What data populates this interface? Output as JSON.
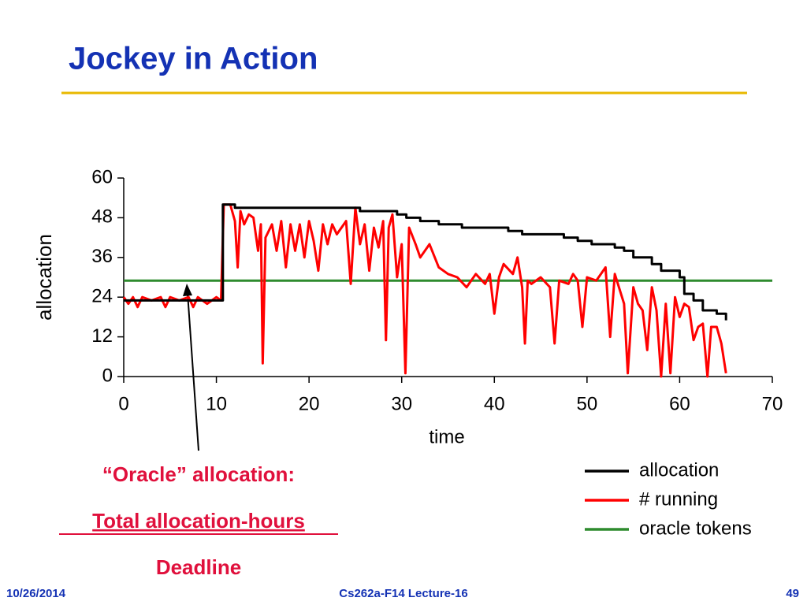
{
  "slide": {
    "title": "Jockey in Action",
    "notes": [
      "“Oracle” allocation:",
      "Total allocation-hours",
      "Deadline"
    ],
    "footer": {
      "date": "10/26/2014",
      "course": "Cs262a-F14 Lecture-16",
      "page": "49"
    }
  },
  "chart_data": {
    "type": "line",
    "xlabel": "time",
    "ylabel": "allocation",
    "xlim": [
      0,
      70
    ],
    "xticks": [
      0,
      10,
      20,
      30,
      40,
      50,
      60,
      70
    ],
    "ylim": [
      0,
      60
    ],
    "yticks": [
      0,
      12,
      24,
      36,
      48,
      60
    ],
    "series": [
      {
        "name": "allocation",
        "color": "#000000",
        "step": true,
        "x": [
          0,
          10.7,
          12,
          25.5,
          29.5,
          30.5,
          32,
          34,
          36.5,
          41.5,
          43,
          47.5,
          49,
          50.5,
          53,
          54,
          55,
          57,
          58,
          60,
          60.5,
          61.5,
          62.5,
          64,
          65
        ],
        "values": [
          23,
          52,
          51,
          50,
          49,
          48,
          47,
          46,
          45,
          44,
          43,
          42,
          41,
          40,
          39,
          38,
          36,
          34,
          32,
          30,
          25,
          23,
          20,
          19,
          17
        ]
      },
      {
        "name": "# running",
        "color": "#ff0000",
        "x": [
          0,
          0.5,
          1,
          1.5,
          2,
          3,
          4,
          4.5,
          5,
          6,
          7,
          7.5,
          8,
          9,
          10,
          10.5,
          10.8,
          11.5,
          12,
          12.3,
          12.6,
          13,
          13.5,
          14,
          14.5,
          14.8,
          15,
          15.3,
          16,
          16.5,
          17,
          17.5,
          18,
          18.5,
          19,
          19.5,
          20,
          20.5,
          21,
          21.5,
          22,
          22.5,
          23,
          24,
          24.5,
          25,
          25.5,
          26,
          26.5,
          27,
          27.5,
          28,
          28.3,
          28.6,
          29,
          29.5,
          30,
          30.4,
          30.8,
          31.5,
          32,
          33,
          34,
          35,
          36,
          37,
          38,
          39,
          39.5,
          40,
          40.5,
          41,
          42,
          42.5,
          43,
          43.3,
          43.6,
          44,
          45,
          46,
          46.5,
          47,
          48,
          48.5,
          49,
          49.5,
          50,
          51,
          52,
          52.5,
          53,
          54,
          54.4,
          55,
          55.5,
          56,
          56.5,
          57,
          57.5,
          58,
          58.5,
          59,
          59.5,
          60,
          60.5,
          61,
          61.5,
          62,
          62.5,
          63,
          63.4,
          64,
          64.5,
          65
        ],
        "values": [
          24,
          22,
          24,
          21,
          24,
          23,
          24,
          21,
          24,
          23,
          24,
          21,
          24,
          22,
          24,
          23,
          52,
          52,
          47,
          33,
          50,
          46,
          49,
          48,
          38,
          46,
          4,
          42,
          46,
          38,
          47,
          33,
          46,
          38,
          46,
          36,
          47,
          41,
          32,
          46,
          40,
          46,
          43,
          47,
          28,
          51,
          40,
          46,
          32,
          45,
          39,
          47,
          11,
          45,
          49,
          30,
          40,
          1,
          45,
          40,
          36,
          40,
          33,
          31,
          30,
          27,
          31,
          28,
          31,
          19,
          30,
          34,
          31,
          36,
          27,
          10,
          29,
          28,
          30,
          27,
          10,
          29,
          28,
          31,
          29,
          15,
          30,
          29,
          33,
          12,
          31,
          22,
          1,
          27,
          22,
          20,
          8,
          27,
          20,
          0,
          22,
          1,
          24,
          18,
          22,
          21,
          11,
          15,
          16,
          0,
          15,
          15,
          10,
          1
        ]
      },
      {
        "name": "oracle tokens",
        "color": "#2e8b2e",
        "x": [
          0,
          70
        ],
        "values": [
          29,
          29
        ]
      }
    ]
  }
}
